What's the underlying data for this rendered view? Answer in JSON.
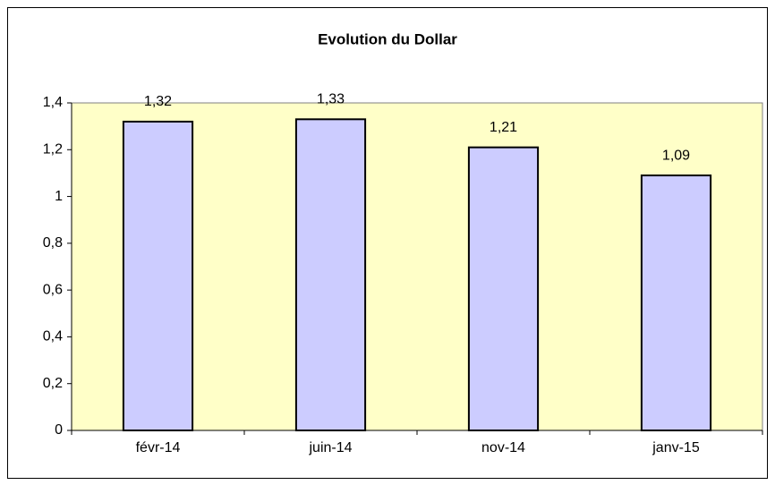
{
  "chart_data": {
    "type": "bar",
    "title": "Evolution du Dollar",
    "categories": [
      "févr-14",
      "juin-14",
      "nov-14",
      "janv-15"
    ],
    "values": [
      1.32,
      1.33,
      1.21,
      1.09
    ],
    "value_labels": [
      "1,32",
      "1,33",
      "1,21",
      "1,09"
    ],
    "color": "#ccccff",
    "ylim": [
      0,
      1.4
    ],
    "yticks": [
      0,
      {
        "value": 0.2,
        "label": "0,2"
      },
      {
        "value": 0.4,
        "label": "0,4"
      },
      {
        "value": 0.6,
        "label": "0,6"
      },
      {
        "value": 0.8,
        "label": "0,8"
      },
      1,
      {
        "value": 1.2,
        "label": "1,2"
      },
      {
        "value": 1.4,
        "label": "1,4"
      }
    ],
    "grid": false
  }
}
